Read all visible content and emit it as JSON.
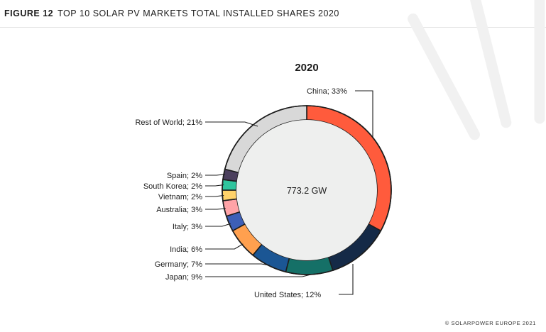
{
  "header": {
    "figure_number": "FIGURE 12",
    "title": "TOP 10 SOLAR PV MARKETS TOTAL INSTALLED SHARES 2020"
  },
  "footer": {
    "copyright": "© SOLARPOWER EUROPE 2021"
  },
  "chart_data": {
    "type": "pie",
    "title": "2020",
    "center_label": "773.2 GW",
    "label_separator": "; ",
    "slices": [
      {
        "name": "China",
        "value": 33,
        "label": "33%",
        "color": "#ff5b3c"
      },
      {
        "name": "United States",
        "value": 12,
        "label": "12%",
        "color": "#152a47"
      },
      {
        "name": "Japan",
        "value": 9,
        "label": "9%",
        "color": "#157067"
      },
      {
        "name": "Germany",
        "value": 7,
        "label": "7%",
        "color": "#1b5694"
      },
      {
        "name": "India",
        "value": 6,
        "label": "6%",
        "color": "#ffa04f"
      },
      {
        "name": "Italy",
        "value": 3,
        "label": "3%",
        "color": "#3d5fb7"
      },
      {
        "name": "Australia",
        "value": 3,
        "label": "3%",
        "color": "#ffa3a7"
      },
      {
        "name": "Vietnam",
        "value": 2,
        "label": "2%",
        "color": "#ffd26a"
      },
      {
        "name": "South Korea",
        "value": 2,
        "label": "2%",
        "color": "#2fc59e"
      },
      {
        "name": "Spain",
        "value": 2,
        "label": "2%",
        "color": "#4b3f5d"
      },
      {
        "name": "Rest of World",
        "value": 21,
        "label": "21%",
        "color": "#d8d8d8"
      }
    ],
    "inner_fill": "#eeefee",
    "decoration_color": "#f1f1f1"
  }
}
